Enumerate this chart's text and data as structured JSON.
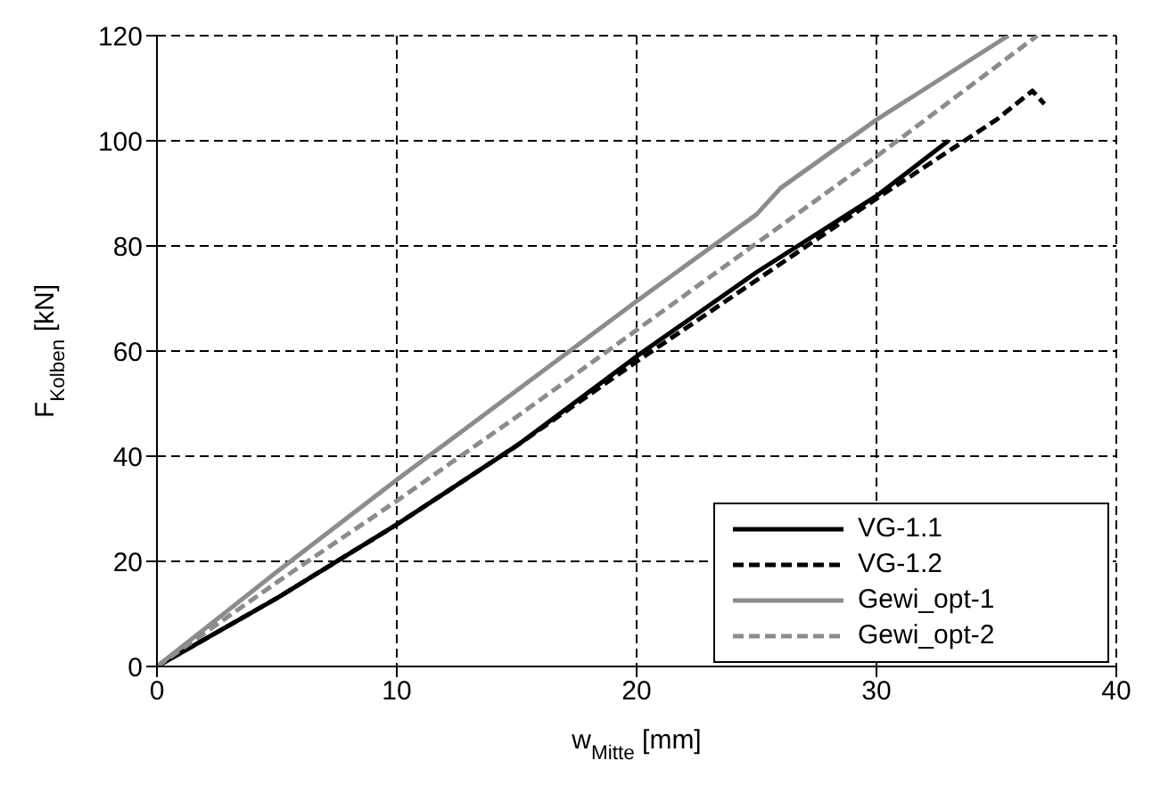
{
  "chart_data": {
    "type": "line",
    "xlabel": "w$_{Mitte}$ [mm]",
    "ylabel": "F$_{Kolben}$ [kN]",
    "xlim": [
      0,
      40
    ],
    "xticks": [
      0,
      10,
      20,
      30,
      40
    ],
    "ylim": [
      0,
      120
    ],
    "yticks": [
      0,
      20,
      40,
      60,
      80,
      100,
      120
    ],
    "grid": true,
    "legend": "bottom right",
    "marker": "none",
    "series": [
      {
        "name": "VG-1.1",
        "color": "#000000",
        "line_style": "solid",
        "x": [
          0,
          5,
          10,
          15,
          20,
          25,
          30,
          33
        ],
        "values": [
          0,
          13,
          27,
          42,
          59,
          75,
          89.5,
          100
        ]
      },
      {
        "name": "VG-1.2",
        "color": "#000000",
        "line_style": "dashed",
        "x": [
          0,
          5,
          10,
          15,
          20,
          25,
          30,
          33,
          35,
          36.5,
          37
        ],
        "values": [
          0,
          13,
          27,
          42,
          58,
          73.5,
          89,
          98,
          104,
          109.5,
          107
        ]
      },
      {
        "name": "Gewi_opt-1",
        "color": "#8c8c8c",
        "line_style": "solid",
        "x": [
          0,
          5,
          10,
          15,
          20,
          25,
          26,
          30,
          35.5
        ],
        "values": [
          0,
          18,
          35.5,
          52.5,
          69.5,
          86,
          91,
          104,
          120
        ]
      },
      {
        "name": "Gewi_opt-2",
        "color": "#8c8c8c",
        "line_style": "dashed",
        "x": [
          0,
          5,
          10,
          15,
          20,
          25,
          30,
          36.7
        ],
        "values": [
          0,
          16,
          31.5,
          47.5,
          64,
          80.5,
          97,
          120
        ]
      }
    ]
  }
}
